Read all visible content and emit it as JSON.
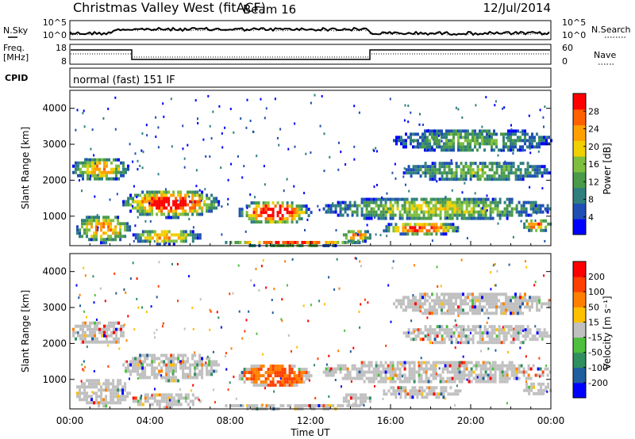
{
  "header": {
    "station": "Christmas Valley West (fitACF)",
    "beam": "Beam 16",
    "date": "12/Jul/2014"
  },
  "noise_panel": {
    "left_label": "N.Sky",
    "right_label": "N.Search",
    "left_ticks": [
      "10^5",
      "10^0"
    ],
    "right_ticks": [
      "10^5",
      "10^0"
    ]
  },
  "freq_panel": {
    "left_label_top": "Freq.",
    "left_label_bottom": "[MHz]",
    "right_label": "Nave",
    "left_ticks": [
      "18",
      "8"
    ],
    "right_ticks": [
      "60",
      "0"
    ]
  },
  "cpid_panel": {
    "label": "CPID",
    "text": "normal (fast) 151 IF"
  },
  "chart_data": [
    {
      "type": "heatmap",
      "name": "power",
      "ylabel": "Slant Range [km]",
      "yticks": [
        "4000",
        "3000",
        "2000",
        "1000"
      ],
      "ylim": [
        180,
        4500
      ],
      "xlim": [
        0,
        24
      ],
      "colorbar": {
        "label": "Power [dB]",
        "ticks": [
          "28",
          "24",
          "20",
          "16",
          "12",
          "8",
          "4"
        ],
        "colors": [
          "#0000ff",
          "#1f4fb4",
          "#2f7f7f",
          "#4a9a4a",
          "#7fbf3f",
          "#f0d000",
          "#ffa000",
          "#ff6000",
          "#ff0000"
        ]
      }
    },
    {
      "type": "heatmap",
      "name": "velocity",
      "ylabel": "Slant Range [km]",
      "yticks": [
        "4000",
        "3000",
        "2000",
        "1000"
      ],
      "ylim": [
        180,
        4500
      ],
      "xlim": [
        0,
        24
      ],
      "xlabel": "Time UT",
      "xticks": [
        "00:00",
        "04:00",
        "08:00",
        "12:00",
        "16:00",
        "20:00",
        "00:00"
      ],
      "colorbar": {
        "label": "Velocity [m s⁻¹]",
        "ticks": [
          "200",
          "100",
          "50",
          "15",
          "-15",
          "-50",
          "-100",
          "-200"
        ],
        "colors": [
          "#0000ff",
          "#1f5fa0",
          "#2f8f5f",
          "#4fbf3f",
          "#c0c0c0",
          "#ffc000",
          "#ff8000",
          "#ff4000",
          "#ff0000"
        ]
      }
    }
  ]
}
